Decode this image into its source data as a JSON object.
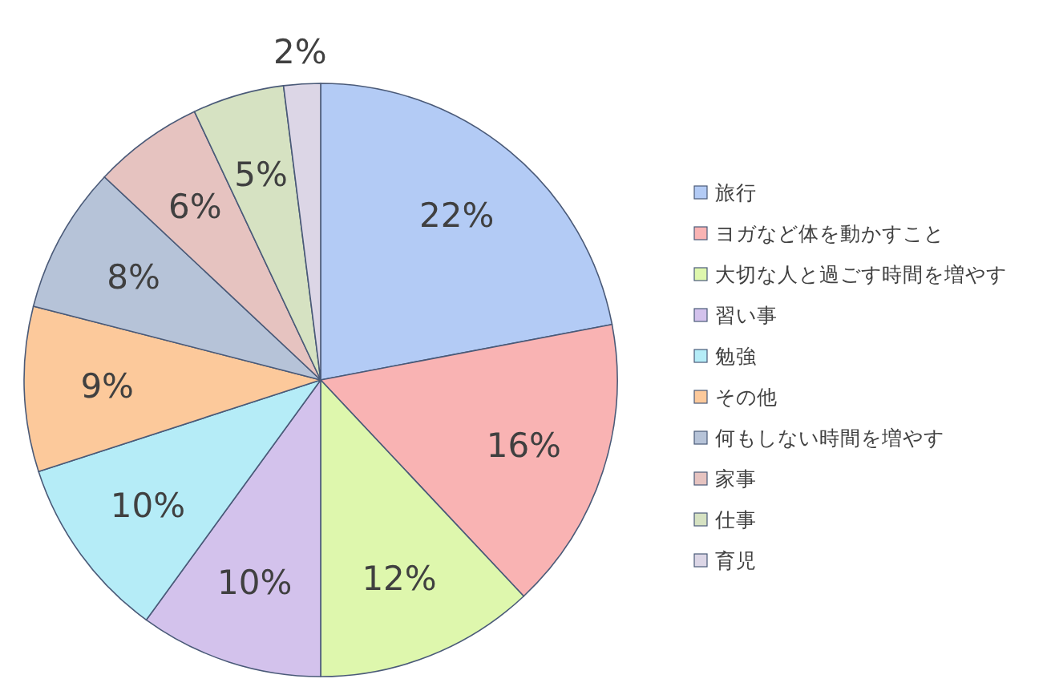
{
  "chart_data": {
    "type": "pie",
    "categories": [
      "旅行",
      "ヨガなど体を動かすこと",
      "大切な人と過ごす時間を増やす",
      "習い事",
      "勉強",
      "その他",
      "何もしない時間を増やす",
      "家事",
      "仕事",
      "育児"
    ],
    "values": [
      22,
      16,
      12,
      10,
      10,
      9,
      8,
      6,
      5,
      2
    ],
    "value_labels": [
      "22%",
      "16%",
      "12%",
      "10%",
      "10%",
      "9%",
      "8%",
      "6%",
      "5%",
      "2%"
    ],
    "colors": [
      "#b3cbf5",
      "#f9b3b3",
      "#def7ad",
      "#d3c2ec",
      "#b5ecf7",
      "#fcc99b",
      "#b6c3d8",
      "#e6c3c0",
      "#d6e2c2",
      "#dcd6e6"
    ],
    "legend": "right"
  }
}
